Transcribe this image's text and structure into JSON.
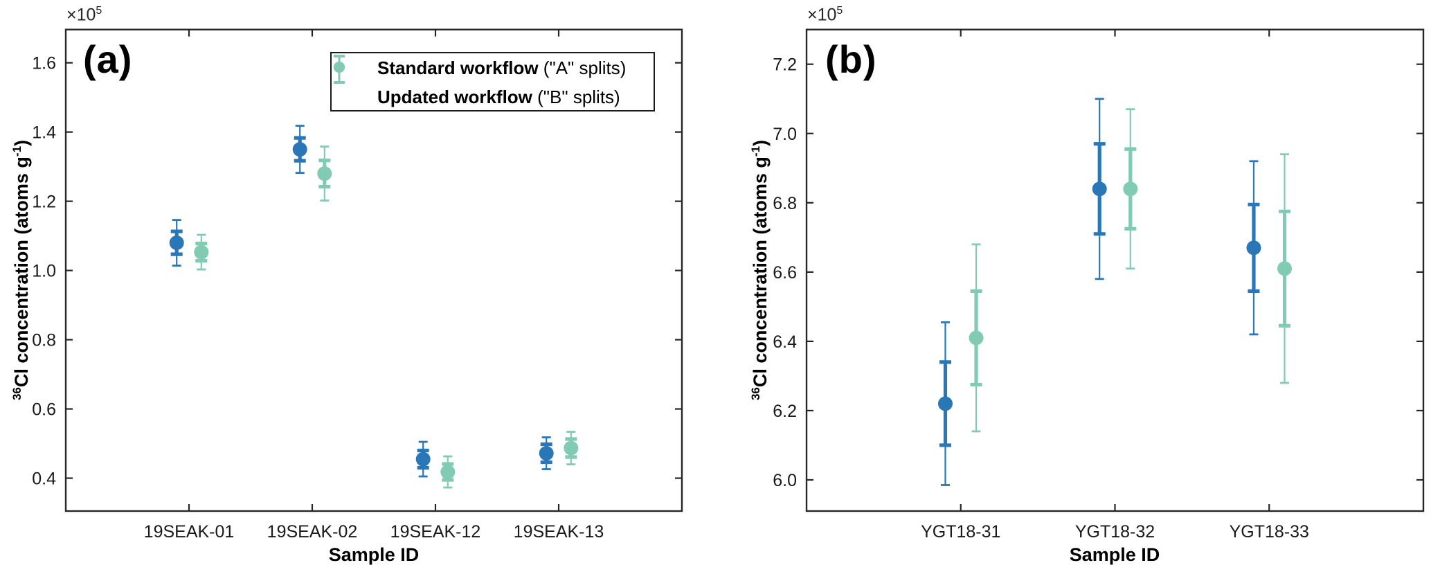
{
  "figure": {
    "background": "#ffffff",
    "ylabel_parts": {
      "sup1": "36",
      "main": "Cl concentration (atoms g",
      "sup2": "-1",
      "close": ")"
    }
  },
  "colors": {
    "series_a": "#2A77B8",
    "series_b": "#80CBB2",
    "axis": "#262626",
    "text": "#000000"
  },
  "legend": {
    "position": "inside-top-right-of-panel-a",
    "items": [
      {
        "label_bold": "Standard workflow",
        "label_rest": " (\"A\" splits)",
        "series": "A",
        "color_key": "series_a"
      },
      {
        "label_bold": "Updated workflow",
        "label_rest": " (\"B\" splits)",
        "series": "B",
        "color_key": "series_b"
      }
    ]
  },
  "chart_data": [
    {
      "type": "scatter",
      "panel_label": "(a)",
      "y_offset_label": {
        "base": "×10",
        "exp": "5"
      },
      "xlabel": "Sample ID",
      "ylabel": "³⁶Cl concentration (atoms g⁻¹)",
      "categories": [
        "19SEAK-01",
        "19SEAK-02",
        "19SEAK-12",
        "19SEAK-13"
      ],
      "xlim": [
        0,
        5
      ],
      "ylim": [
        0.305,
        1.696
      ],
      "yticks": [
        "0.4",
        "0.6",
        "0.8",
        "1.0",
        "1.2",
        "1.4",
        "1.6"
      ],
      "ytick_values": [
        0.4,
        0.6,
        0.8,
        1.0,
        1.2,
        1.4,
        1.6
      ],
      "grid": false,
      "error_bars": "nested (inner thick = 1-sigma, outer thin = total)",
      "series": [
        {
          "name": "Standard workflow (\"A\" splits)",
          "color_key": "series_a",
          "x_offset": -0.1,
          "points": [
            {
              "category": "19SEAK-01",
              "value": 1.08,
              "inner_err": 0.033,
              "outer_err": 0.066
            },
            {
              "category": "19SEAK-02",
              "value": 1.35,
              "inner_err": 0.033,
              "outer_err": 0.068
            },
            {
              "category": "19SEAK-12",
              "value": 0.455,
              "inner_err": 0.025,
              "outer_err": 0.05
            },
            {
              "category": "19SEAK-13",
              "value": 0.472,
              "inner_err": 0.026,
              "outer_err": 0.046
            }
          ]
        },
        {
          "name": "Updated workflow (\"B\" splits)",
          "color_key": "series_b",
          "x_offset": 0.1,
          "points": [
            {
              "category": "19SEAK-01",
              "value": 1.053,
              "inner_err": 0.025,
              "outer_err": 0.05
            },
            {
              "category": "19SEAK-02",
              "value": 1.28,
              "inner_err": 0.038,
              "outer_err": 0.078
            },
            {
              "category": "19SEAK-12",
              "value": 0.418,
              "inner_err": 0.023,
              "outer_err": 0.045
            },
            {
              "category": "19SEAK-13",
              "value": 0.487,
              "inner_err": 0.026,
              "outer_err": 0.047
            }
          ]
        }
      ]
    },
    {
      "type": "scatter",
      "panel_label": "(b)",
      "y_offset_label": {
        "base": "×10",
        "exp": "5"
      },
      "xlabel": "Sample ID",
      "ylabel": "³⁶Cl concentration (atoms g⁻¹)",
      "categories": [
        "YGT18-31",
        "YGT18-32",
        "YGT18-33"
      ],
      "xlim": [
        0,
        4
      ],
      "ylim": [
        5.91,
        7.3
      ],
      "yticks": [
        "6.0",
        "6.2",
        "6.4",
        "6.6",
        "6.8",
        "7.0",
        "7.2"
      ],
      "ytick_values": [
        6.0,
        6.2,
        6.4,
        6.6,
        6.8,
        7.0,
        7.2
      ],
      "grid": false,
      "error_bars": "nested (inner thick = 1-sigma, outer thin = total)",
      "series": [
        {
          "name": "Standard workflow (\"A\" splits)",
          "color_key": "series_a",
          "x_offset": -0.1,
          "points": [
            {
              "category": "YGT18-31",
              "value": 6.22,
              "inner_err": 0.12,
              "outer_err": 0.235
            },
            {
              "category": "YGT18-32",
              "value": 6.84,
              "inner_err": 0.13,
              "outer_err": 0.26
            },
            {
              "category": "YGT18-33",
              "value": 6.67,
              "inner_err": 0.125,
              "outer_err": 0.25
            }
          ]
        },
        {
          "name": "Updated workflow (\"B\" splits)",
          "color_key": "series_b",
          "x_offset": 0.1,
          "points": [
            {
              "category": "YGT18-31",
              "value": 6.41,
              "inner_err": 0.135,
              "outer_err": 0.27
            },
            {
              "category": "YGT18-32",
              "value": 6.84,
              "inner_err": 0.115,
              "outer_err": 0.23
            },
            {
              "category": "YGT18-33",
              "value": 6.61,
              "inner_err": 0.165,
              "outer_err": 0.33
            }
          ]
        }
      ]
    }
  ]
}
